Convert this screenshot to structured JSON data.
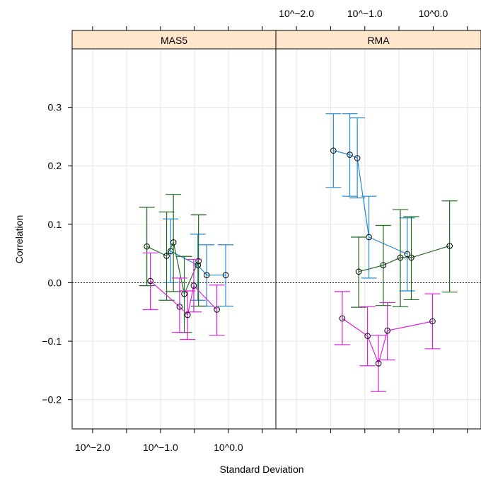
{
  "chart_data": {
    "type": "scatter",
    "xlabel": "Standard Deviation",
    "ylabel": "Correlation",
    "x_scale": "log10",
    "xlim": [
      0.005,
      5.0
    ],
    "ylim": [
      -0.25,
      0.4
    ],
    "x_ticks": [
      {
        "value": 0.01,
        "label": "10^−2.0"
      },
      {
        "value": 0.1,
        "label": "10^−1.0"
      },
      {
        "value": 1.0,
        "label": "10^0.0"
      }
    ],
    "x_minor_ticks": [
      0.0316,
      0.316,
      3.16
    ],
    "y_ticks": [
      {
        "value": -0.2,
        "label": "−0.2"
      },
      {
        "value": -0.1,
        "label": "−0.1"
      },
      {
        "value": 0.0,
        "label": "0.0"
      },
      {
        "value": 0.1,
        "label": "0.1"
      },
      {
        "value": 0.2,
        "label": "0.2"
      },
      {
        "value": 0.3,
        "label": "0.3"
      }
    ],
    "reference_line": 0.0,
    "grid": true,
    "panels": [
      {
        "strip": "MAS5",
        "series": [
          {
            "color": "#2288d8",
            "points": [
              {
                "x": 0.141,
                "y": 0.054,
                "lo": 0.0,
                "hi": 0.109
              },
              {
                "x": 0.355,
                "y": 0.03,
                "lo": -0.03,
                "hi": 0.083
              },
              {
                "x": 0.479,
                "y": 0.013,
                "lo": -0.04,
                "hi": 0.065
              },
              {
                "x": 0.912,
                "y": 0.013,
                "lo": -0.04,
                "hi": 0.065
              }
            ]
          },
          {
            "color": "#1f6b1f",
            "points": [
              {
                "x": 0.063,
                "y": 0.062,
                "lo": -0.005,
                "hi": 0.129
              },
              {
                "x": 0.123,
                "y": 0.046,
                "lo": -0.03,
                "hi": 0.121
              },
              {
                "x": 0.155,
                "y": 0.069,
                "lo": -0.015,
                "hi": 0.151
              },
              {
                "x": 0.224,
                "y": -0.019,
                "lo": -0.085,
                "hi": 0.045
              },
              {
                "x": 0.363,
                "y": 0.037,
                "lo": -0.04,
                "hi": 0.116
              }
            ]
          },
          {
            "color": "#dd22dd",
            "points": [
              {
                "x": 0.071,
                "y": 0.003,
                "lo": -0.046,
                "hi": 0.051
              },
              {
                "x": 0.191,
                "y": -0.041,
                "lo": -0.085,
                "hi": 0.008
              },
              {
                "x": 0.251,
                "y": -0.055,
                "lo": -0.097,
                "hi": -0.014
              },
              {
                "x": 0.309,
                "y": -0.005,
                "lo": -0.05,
                "hi": 0.04
              },
              {
                "x": 0.676,
                "y": -0.046,
                "lo": -0.09,
                "hi": -0.004
              }
            ]
          }
        ]
      },
      {
        "strip": "RMA",
        "series": [
          {
            "color": "#2288d8",
            "points": [
              {
                "x": 0.0347,
                "y": 0.226,
                "lo": 0.163,
                "hi": 0.289
              },
              {
                "x": 0.0603,
                "y": 0.219,
                "lo": 0.148,
                "hi": 0.289
              },
              {
                "x": 0.0776,
                "y": 0.213,
                "lo": 0.145,
                "hi": 0.282
              },
              {
                "x": 0.1148,
                "y": 0.078,
                "lo": 0.008,
                "hi": 0.148
              },
              {
                "x": 0.4169,
                "y": 0.049,
                "lo": -0.014,
                "hi": 0.111
              }
            ]
          },
          {
            "color": "#1f6b1f",
            "points": [
              {
                "x": 0.0813,
                "y": 0.019,
                "lo": -0.042,
                "hi": 0.078
              },
              {
                "x": 0.1862,
                "y": 0.03,
                "lo": -0.039,
                "hi": 0.098
              },
              {
                "x": 0.3311,
                "y": 0.043,
                "lo": -0.041,
                "hi": 0.125
              },
              {
                "x": 0.4786,
                "y": 0.043,
                "lo": -0.029,
                "hi": 0.113
              },
              {
                "x": 1.7378,
                "y": 0.063,
                "lo": -0.016,
                "hi": 0.14
              }
            ]
          },
          {
            "color": "#dd22dd",
            "points": [
              {
                "x": 0.0468,
                "y": -0.061,
                "lo": -0.106,
                "hi": -0.015
              },
              {
                "x": 0.1096,
                "y": -0.091,
                "lo": -0.142,
                "hi": -0.041
              },
              {
                "x": 0.1585,
                "y": -0.138,
                "lo": -0.186,
                "hi": -0.09
              },
              {
                "x": 0.2138,
                "y": -0.082,
                "lo": -0.132,
                "hi": -0.034
              },
              {
                "x": 0.9772,
                "y": -0.066,
                "lo": -0.113,
                "hi": -0.019
              }
            ]
          }
        ]
      }
    ]
  }
}
